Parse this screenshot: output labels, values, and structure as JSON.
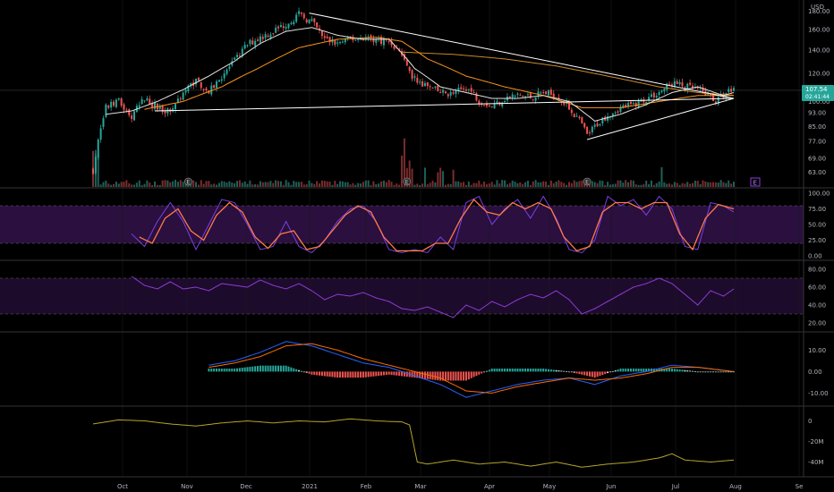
{
  "colors": {
    "background": "#000000",
    "up": "#26a69a",
    "down": "#ef5350",
    "sma_fast": "#e0e0e0",
    "sma_slow": "#f7931a",
    "sma_long": "#c98a2b",
    "trendline": "#ffffff",
    "band": "#2a0f3f",
    "stoch_k": "#7b3fe4",
    "stoch_d": "#ff7a45",
    "rsi": "#8e3bd6",
    "macd": "#2962ff",
    "signal": "#ff6d00",
    "obv": "#b4a52c",
    "grid": "#1a1a1a",
    "axis_text": "#b2b5be",
    "last_price_bg": "#26a69a"
  },
  "chart_data": {
    "type": "candlestick",
    "currency": "USD",
    "last_price": "107.54",
    "countdown": "02:41:44",
    "earnings_marker": "E",
    "x_labels": [
      "Oct",
      "Nov",
      "Dec",
      "2021",
      "Feb",
      "Mar",
      "Apr",
      "May",
      "Jun",
      "Jul",
      "Aug",
      "Se"
    ],
    "price_axis": {
      "ticks": [
        "180.00",
        "160.00",
        "140.00",
        "120.00",
        "107.54",
        "100.00",
        "93.00",
        "85.00",
        "77.00",
        "69.00",
        "63.00"
      ],
      "range": [
        60,
        185
      ],
      "scale": "log"
    },
    "stochastic": {
      "ticks": [
        "100.00",
        "75.00",
        "50.00",
        "25.00",
        "0.00"
      ],
      "band": [
        20,
        80
      ],
      "range": [
        0,
        100
      ]
    },
    "rsi": {
      "ticks": [
        "80.00",
        "60.00",
        "40.00",
        "20.00"
      ],
      "band": [
        30,
        70
      ],
      "range": [
        15,
        85
      ]
    },
    "macd": {
      "ticks": [
        "10.00",
        "0.00",
        "-10.00"
      ],
      "range": [
        -14,
        16
      ]
    },
    "obv": {
      "ticks": [
        "0",
        "-20M",
        "-40M"
      ],
      "range": [
        -50,
        10
      ]
    },
    "price_path": [
      [
        0,
        64
      ],
      [
        5,
        96
      ],
      [
        10,
        100
      ],
      [
        15,
        90
      ],
      [
        20,
        102
      ],
      [
        25,
        96
      ],
      [
        30,
        94
      ],
      [
        35,
        106
      ],
      [
        40,
        115
      ],
      [
        45,
        106
      ],
      [
        50,
        118
      ],
      [
        55,
        130
      ],
      [
        60,
        145
      ],
      [
        65,
        152
      ],
      [
        70,
        158
      ],
      [
        75,
        166
      ],
      [
        80,
        176
      ],
      [
        85,
        168
      ],
      [
        90,
        150
      ],
      [
        95,
        146
      ],
      [
        100,
        150
      ],
      [
        105,
        152
      ],
      [
        110,
        150
      ],
      [
        115,
        148
      ],
      [
        120,
        136
      ],
      [
        123,
        120
      ],
      [
        125,
        116
      ],
      [
        130,
        110
      ],
      [
        135,
        106
      ],
      [
        140,
        105
      ],
      [
        145,
        110
      ],
      [
        150,
        101
      ],
      [
        155,
        97
      ],
      [
        160,
        102
      ],
      [
        165,
        104
      ],
      [
        170,
        103
      ],
      [
        175,
        106
      ],
      [
        180,
        104
      ],
      [
        185,
        96
      ],
      [
        190,
        86
      ],
      [
        192,
        80
      ],
      [
        195,
        85
      ],
      [
        200,
        92
      ],
      [
        205,
        96
      ],
      [
        210,
        98
      ],
      [
        215,
        102
      ],
      [
        220,
        106
      ],
      [
        225,
        113
      ],
      [
        230,
        110
      ],
      [
        235,
        108
      ],
      [
        240,
        104
      ],
      [
        242,
        100
      ],
      [
        245,
        104
      ],
      [
        249,
        110
      ]
    ],
    "sma_fast_path": [
      [
        5,
        92
      ],
      [
        15,
        94
      ],
      [
        25,
        100
      ],
      [
        35,
        108
      ],
      [
        45,
        118
      ],
      [
        55,
        130
      ],
      [
        65,
        146
      ],
      [
        75,
        158
      ],
      [
        85,
        162
      ],
      [
        95,
        154
      ],
      [
        105,
        150
      ],
      [
        115,
        150
      ],
      [
        125,
        124
      ],
      [
        135,
        110
      ],
      [
        145,
        106
      ],
      [
        155,
        102
      ],
      [
        165,
        102
      ],
      [
        175,
        104
      ],
      [
        185,
        100
      ],
      [
        195,
        88
      ],
      [
        205,
        92
      ],
      [
        215,
        98
      ],
      [
        225,
        106
      ],
      [
        235,
        110
      ],
      [
        245,
        104
      ],
      [
        249,
        106
      ]
    ],
    "sma_slow_path": [
      [
        20,
        95
      ],
      [
        35,
        100
      ],
      [
        50,
        110
      ],
      [
        65,
        125
      ],
      [
        80,
        142
      ],
      [
        95,
        150
      ],
      [
        110,
        152
      ],
      [
        120,
        148
      ],
      [
        130,
        132
      ],
      [
        145,
        118
      ],
      [
        160,
        110
      ],
      [
        175,
        104
      ],
      [
        190,
        96
      ],
      [
        205,
        96
      ],
      [
        220,
        100
      ],
      [
        235,
        104
      ],
      [
        249,
        104
      ]
    ],
    "sma_long_path": [
      [
        120,
        138
      ],
      [
        140,
        136
      ],
      [
        160,
        132
      ],
      [
        180,
        126
      ],
      [
        200,
        118
      ],
      [
        220,
        110
      ],
      [
        235,
        106
      ],
      [
        249,
        104
      ]
    ],
    "trendlines": [
      [
        [
          84,
          178
        ],
        [
          249,
          102
        ]
      ],
      [
        [
          24,
          94
        ],
        [
          249,
          102
        ]
      ],
      [
        [
          192,
          78
        ],
        [
          249,
          102
        ]
      ]
    ],
    "stoch_k_path": [
      [
        15,
        35
      ],
      [
        20,
        15
      ],
      [
        25,
        55
      ],
      [
        30,
        85
      ],
      [
        35,
        55
      ],
      [
        40,
        10
      ],
      [
        45,
        50
      ],
      [
        50,
        90
      ],
      [
        55,
        85
      ],
      [
        60,
        50
      ],
      [
        65,
        10
      ],
      [
        70,
        15
      ],
      [
        75,
        55
      ],
      [
        80,
        15
      ],
      [
        85,
        5
      ],
      [
        90,
        25
      ],
      [
        95,
        55
      ],
      [
        100,
        75
      ],
      [
        105,
        80
      ],
      [
        110,
        55
      ],
      [
        115,
        10
      ],
      [
        120,
        5
      ],
      [
        125,
        10
      ],
      [
        130,
        5
      ],
      [
        135,
        30
      ],
      [
        140,
        10
      ],
      [
        145,
        85
      ],
      [
        150,
        95
      ],
      [
        155,
        50
      ],
      [
        160,
        75
      ],
      [
        165,
        90
      ],
      [
        170,
        60
      ],
      [
        175,
        95
      ],
      [
        180,
        60
      ],
      [
        185,
        10
      ],
      [
        190,
        5
      ],
      [
        195,
        25
      ],
      [
        200,
        95
      ],
      [
        205,
        80
      ],
      [
        210,
        90
      ],
      [
        215,
        65
      ],
      [
        220,
        95
      ],
      [
        225,
        75
      ],
      [
        230,
        15
      ],
      [
        235,
        10
      ],
      [
        240,
        85
      ],
      [
        245,
        80
      ],
      [
        249,
        70
      ]
    ],
    "stoch_d_path": [
      [
        18,
        30
      ],
      [
        23,
        20
      ],
      [
        28,
        60
      ],
      [
        33,
        75
      ],
      [
        38,
        40
      ],
      [
        43,
        25
      ],
      [
        48,
        65
      ],
      [
        53,
        85
      ],
      [
        58,
        70
      ],
      [
        63,
        30
      ],
      [
        68,
        12
      ],
      [
        73,
        35
      ],
      [
        78,
        40
      ],
      [
        83,
        10
      ],
      [
        88,
        15
      ],
      [
        93,
        40
      ],
      [
        98,
        65
      ],
      [
        103,
        80
      ],
      [
        108,
        70
      ],
      [
        113,
        30
      ],
      [
        118,
        8
      ],
      [
        123,
        8
      ],
      [
        128,
        8
      ],
      [
        133,
        20
      ],
      [
        138,
        20
      ],
      [
        143,
        60
      ],
      [
        148,
        90
      ],
      [
        153,
        70
      ],
      [
        158,
        65
      ],
      [
        163,
        85
      ],
      [
        168,
        75
      ],
      [
        173,
        85
      ],
      [
        178,
        75
      ],
      [
        183,
        30
      ],
      [
        188,
        8
      ],
      [
        193,
        15
      ],
      [
        198,
        70
      ],
      [
        203,
        85
      ],
      [
        208,
        85
      ],
      [
        213,
        75
      ],
      [
        218,
        85
      ],
      [
        223,
        85
      ],
      [
        228,
        35
      ],
      [
        233,
        10
      ],
      [
        238,
        60
      ],
      [
        243,
        82
      ],
      [
        249,
        75
      ]
    ],
    "rsi_path": [
      [
        15,
        72
      ],
      [
        20,
        62
      ],
      [
        25,
        58
      ],
      [
        30,
        66
      ],
      [
        35,
        58
      ],
      [
        40,
        60
      ],
      [
        45,
        56
      ],
      [
        50,
        64
      ],
      [
        55,
        62
      ],
      [
        60,
        60
      ],
      [
        65,
        68
      ],
      [
        70,
        62
      ],
      [
        75,
        58
      ],
      [
        80,
        64
      ],
      [
        85,
        56
      ],
      [
        90,
        46
      ],
      [
        95,
        52
      ],
      [
        100,
        50
      ],
      [
        105,
        54
      ],
      [
        110,
        48
      ],
      [
        115,
        44
      ],
      [
        120,
        36
      ],
      [
        125,
        34
      ],
      [
        130,
        38
      ],
      [
        135,
        32
      ],
      [
        140,
        26
      ],
      [
        145,
        40
      ],
      [
        150,
        34
      ],
      [
        155,
        44
      ],
      [
        160,
        38
      ],
      [
        165,
        46
      ],
      [
        170,
        52
      ],
      [
        175,
        48
      ],
      [
        180,
        56
      ],
      [
        185,
        46
      ],
      [
        190,
        30
      ],
      [
        195,
        36
      ],
      [
        200,
        44
      ],
      [
        205,
        52
      ],
      [
        210,
        60
      ],
      [
        215,
        64
      ],
      [
        220,
        70
      ],
      [
        225,
        64
      ],
      [
        230,
        52
      ],
      [
        235,
        40
      ],
      [
        240,
        56
      ],
      [
        245,
        50
      ],
      [
        249,
        58
      ]
    ],
    "macd_path": [
      [
        45,
        3
      ],
      [
        55,
        5
      ],
      [
        65,
        9
      ],
      [
        75,
        14
      ],
      [
        85,
        12
      ],
      [
        95,
        8
      ],
      [
        105,
        4
      ],
      [
        115,
        2
      ],
      [
        125,
        -2
      ],
      [
        135,
        -6
      ],
      [
        145,
        -12
      ],
      [
        155,
        -9
      ],
      [
        165,
        -6
      ],
      [
        175,
        -4
      ],
      [
        185,
        -3
      ],
      [
        195,
        -6
      ],
      [
        205,
        -2
      ],
      [
        215,
        0
      ],
      [
        225,
        3
      ],
      [
        235,
        2
      ],
      [
        249,
        0
      ]
    ],
    "signal_path": [
      [
        45,
        2
      ],
      [
        55,
        4
      ],
      [
        65,
        7
      ],
      [
        75,
        12
      ],
      [
        85,
        13
      ],
      [
        95,
        10
      ],
      [
        105,
        6
      ],
      [
        115,
        3
      ],
      [
        125,
        0
      ],
      [
        135,
        -3
      ],
      [
        145,
        -9
      ],
      [
        155,
        -10
      ],
      [
        165,
        -7
      ],
      [
        175,
        -5
      ],
      [
        185,
        -3
      ],
      [
        195,
        -4
      ],
      [
        205,
        -3
      ],
      [
        215,
        -1
      ],
      [
        225,
        2
      ],
      [
        235,
        2
      ],
      [
        249,
        0
      ]
    ],
    "obv_path": [
      [
        0,
        -3
      ],
      [
        10,
        1
      ],
      [
        20,
        0
      ],
      [
        30,
        -3
      ],
      [
        40,
        -5
      ],
      [
        50,
        -2
      ],
      [
        60,
        0
      ],
      [
        70,
        -2
      ],
      [
        80,
        0
      ],
      [
        90,
        -1
      ],
      [
        100,
        2
      ],
      [
        110,
        0
      ],
      [
        120,
        -1
      ],
      [
        123,
        -4
      ],
      [
        126,
        -40
      ],
      [
        130,
        -42
      ],
      [
        140,
        -38
      ],
      [
        150,
        -42
      ],
      [
        160,
        -40
      ],
      [
        170,
        -44
      ],
      [
        180,
        -40
      ],
      [
        190,
        -45
      ],
      [
        200,
        -42
      ],
      [
        210,
        -40
      ],
      [
        220,
        -36
      ],
      [
        225,
        -32
      ],
      [
        230,
        -38
      ],
      [
        240,
        -40
      ],
      [
        249,
        -38
      ]
    ],
    "earnings_at": [
      37,
      122,
      192
    ],
    "bars": 250
  }
}
